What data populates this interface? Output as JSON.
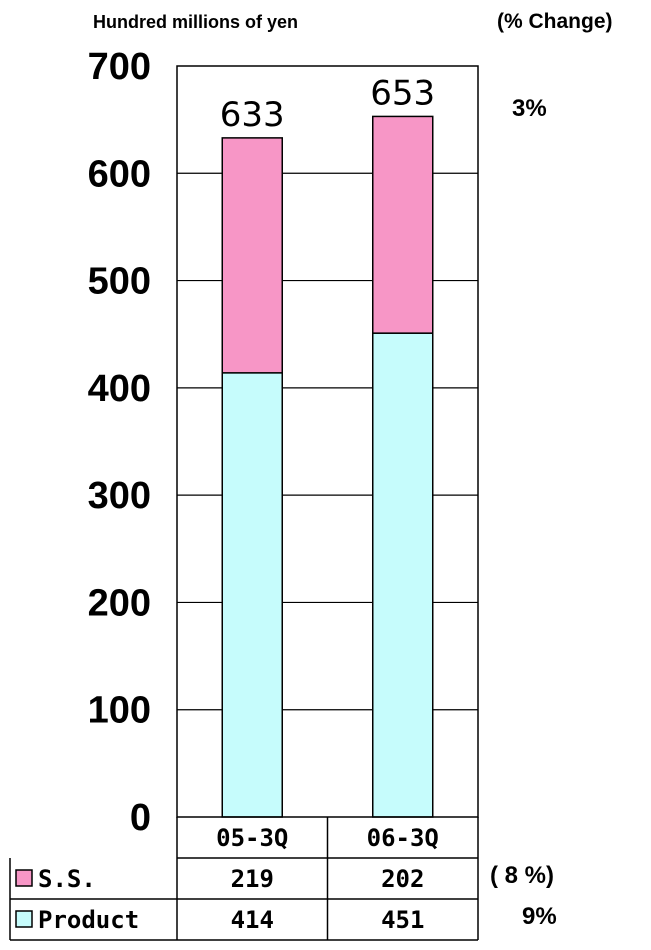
{
  "header": {
    "unit_label": "Hundred millions of yen",
    "change_label": "(% Change)"
  },
  "chart_data": {
    "type": "bar",
    "stacked": true,
    "categories": [
      "05-3Q",
      "06-3Q"
    ],
    "series": [
      {
        "name": "Product",
        "values": [
          414,
          451
        ],
        "color": "#c6fcfc"
      },
      {
        "name": "S.S.",
        "values": [
          219,
          202
        ],
        "color": "#f796c6"
      }
    ],
    "totals": [
      633,
      653
    ],
    "total_labels": [
      "633",
      "653"
    ],
    "ylim": [
      0,
      700
    ],
    "yticks": [
      "0",
      "100",
      "200",
      "300",
      "400",
      "500",
      "600",
      "700"
    ],
    "grid": true,
    "legend": "data-table-below",
    "table": {
      "rows": [
        {
          "name": "S.S.",
          "cells": [
            "219",
            "202"
          ],
          "change": "( 8 %)"
        },
        {
          "name": "Product",
          "cells": [
            "414",
            "451"
          ],
          "change": "9%"
        }
      ]
    },
    "total_change": "3%"
  }
}
